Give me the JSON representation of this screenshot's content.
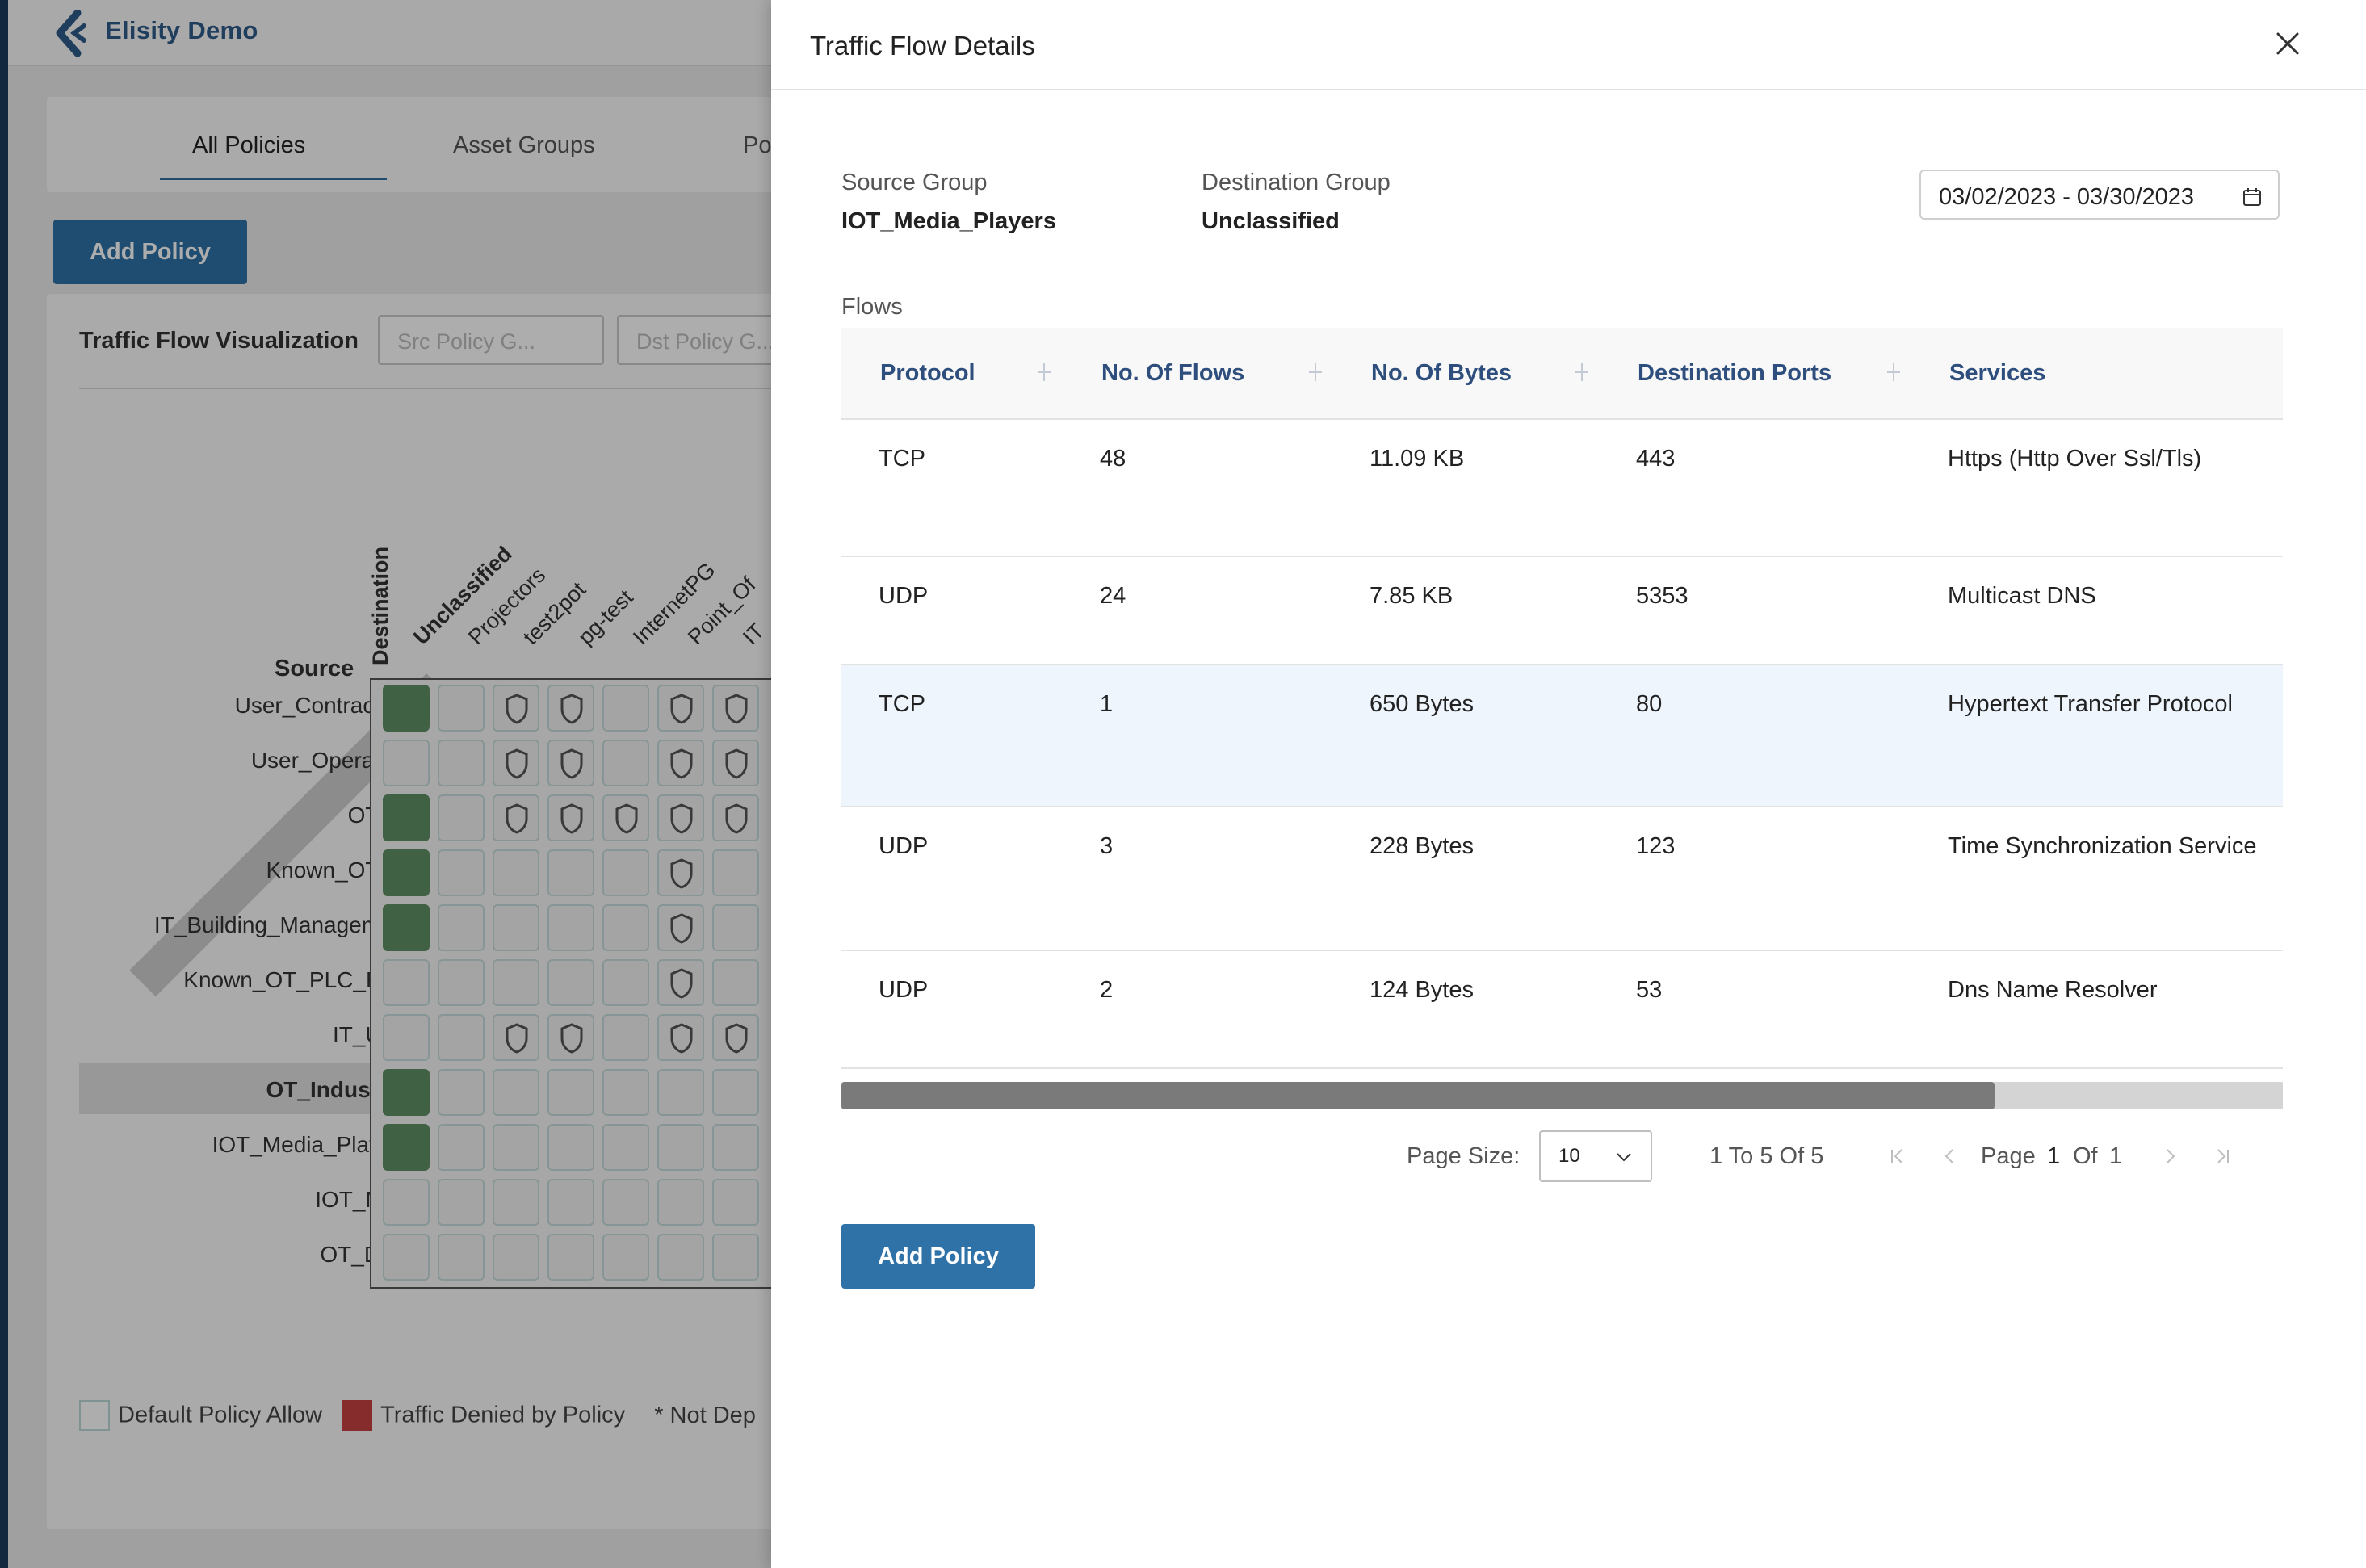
{
  "app": {
    "brand": "Elisity Demo",
    "tabs": [
      "All Policies",
      "Asset Groups",
      "Po"
    ],
    "add_policy_label": "Add Policy",
    "visualization": {
      "title": "Traffic Flow Visualization",
      "src_filter_placeholder": "Src Policy G...",
      "dst_filter_placeholder": "Dst Policy G...",
      "destination_axis_label": "Destination",
      "source_axis_label": "Source",
      "columns": [
        "Unclassified",
        "Projectors",
        "test2pot",
        "pg-test",
        "InternetPG",
        "Point_Of",
        "IT"
      ],
      "rows": [
        {
          "label": "User_Contractors",
          "highlighted": false
        },
        {
          "label": "User_Operators",
          "highlighted": false
        },
        {
          "label": "OT_Pi",
          "highlighted": false
        },
        {
          "label": "Known_OT_Pi",
          "highlighted": false
        },
        {
          "label": "IT_Building_Management",
          "highlighted": false
        },
        {
          "label": "Known_OT_PLC_RTU",
          "highlighted": false
        },
        {
          "label": "IT_UPS",
          "highlighted": false
        },
        {
          "label": "OT_Industrial",
          "highlighted": true
        },
        {
          "label": "IOT_Media_Players",
          "highlighted": false
        },
        {
          "label": "IOT_Misc",
          "highlighted": false
        },
        {
          "label": "OT_DCS",
          "highlighted": false
        }
      ],
      "cell_states": [
        [
          "green",
          "empty",
          "shield",
          "shield",
          "empty",
          "shield",
          "shield"
        ],
        [
          "empty",
          "empty",
          "shield",
          "shield",
          "empty",
          "shield",
          "shield"
        ],
        [
          "green",
          "empty",
          "shield",
          "shield",
          "shield",
          "shield",
          "shield"
        ],
        [
          "green",
          "empty",
          "empty",
          "empty",
          "empty",
          "shield",
          "empty"
        ],
        [
          "green",
          "empty",
          "empty",
          "empty",
          "empty",
          "shield",
          "empty"
        ],
        [
          "empty",
          "empty",
          "empty",
          "empty",
          "empty",
          "shield",
          "empty"
        ],
        [
          "empty",
          "empty",
          "shield",
          "shield",
          "empty",
          "shield",
          "shield"
        ],
        [
          "green",
          "empty",
          "empty",
          "empty",
          "empty",
          "empty",
          "empty"
        ],
        [
          "green",
          "empty",
          "empty",
          "empty",
          "empty",
          "empty",
          "empty"
        ],
        [
          "empty",
          "empty",
          "empty",
          "empty",
          "empty",
          "empty",
          "empty"
        ],
        [
          "empty",
          "empty",
          "empty",
          "empty",
          "empty",
          "empty",
          "empty"
        ]
      ],
      "legend": {
        "allow": "Default Policy Allow",
        "denied": "Traffic Denied by Policy",
        "not_deployed": "* Not Dep"
      },
      "colors": {
        "allowed_cell": "#5f8f65",
        "denied": "#c84141"
      }
    }
  },
  "drawer": {
    "title": "Traffic Flow Details",
    "source_group_label": "Source Group",
    "source_group_value": "IOT_Media_Players",
    "destination_group_label": "Destination Group",
    "destination_group_value": "Unclassified",
    "date_range": "03/02/2023 - 03/30/2023",
    "flows_label": "Flows",
    "columns": [
      "Protocol",
      "No. Of Flows",
      "No. Of Bytes",
      "Destination Ports",
      "Services"
    ],
    "rows": [
      {
        "protocol": "TCP",
        "flows": "48",
        "bytes": "11.09 KB",
        "ports": "443",
        "service": "Https (Http Over Ssl/Tls)",
        "selected": false
      },
      {
        "protocol": "UDP",
        "flows": "24",
        "bytes": "7.85 KB",
        "ports": "5353",
        "service": "Multicast DNS",
        "selected": false
      },
      {
        "protocol": "TCP",
        "flows": "1",
        "bytes": "650 Bytes",
        "ports": "80",
        "service": "Hypertext Transfer Protocol",
        "selected": true
      },
      {
        "protocol": "UDP",
        "flows": "3",
        "bytes": "228 Bytes",
        "ports": "123",
        "service": "Time Synchronization Service",
        "selected": false
      },
      {
        "protocol": "UDP",
        "flows": "2",
        "bytes": "124 Bytes",
        "ports": "53",
        "service": "Dns Name Resolver",
        "selected": false
      }
    ],
    "horizontal_scroll_fraction": 0.8,
    "pagination": {
      "page_size_label": "Page Size:",
      "page_size": "10",
      "range_text": "1 To 5 Of 5",
      "page_word": "Page",
      "current_page": "1",
      "of_word": "Of",
      "total_pages": "1"
    },
    "add_policy_label": "Add Policy",
    "accent_color": "#2f72a8",
    "header_text_color": "#2e4f7d",
    "selected_row_color": "#eef5fd"
  }
}
